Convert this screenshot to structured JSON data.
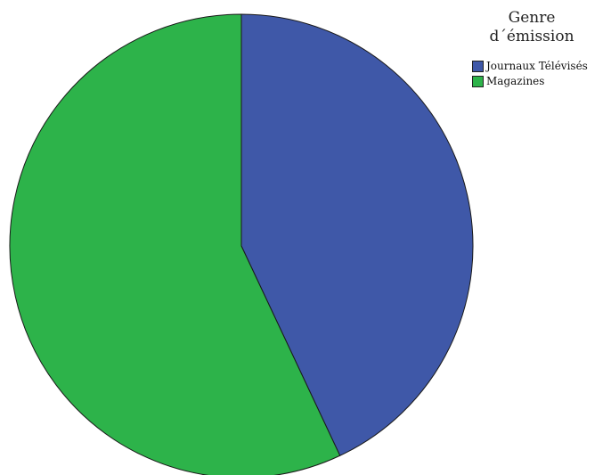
{
  "chart_data": {
    "type": "pie",
    "legend_title_line1": "Genre",
    "legend_title_line2": "d´émission",
    "legend_position": "top-right",
    "categories": [
      "Journaux Télévisés",
      "Magazines"
    ],
    "values": [
      43,
      57
    ],
    "colors": [
      "#3f58a8",
      "#2db34a"
    ],
    "start_angle": "top",
    "direction": "clockwise"
  }
}
